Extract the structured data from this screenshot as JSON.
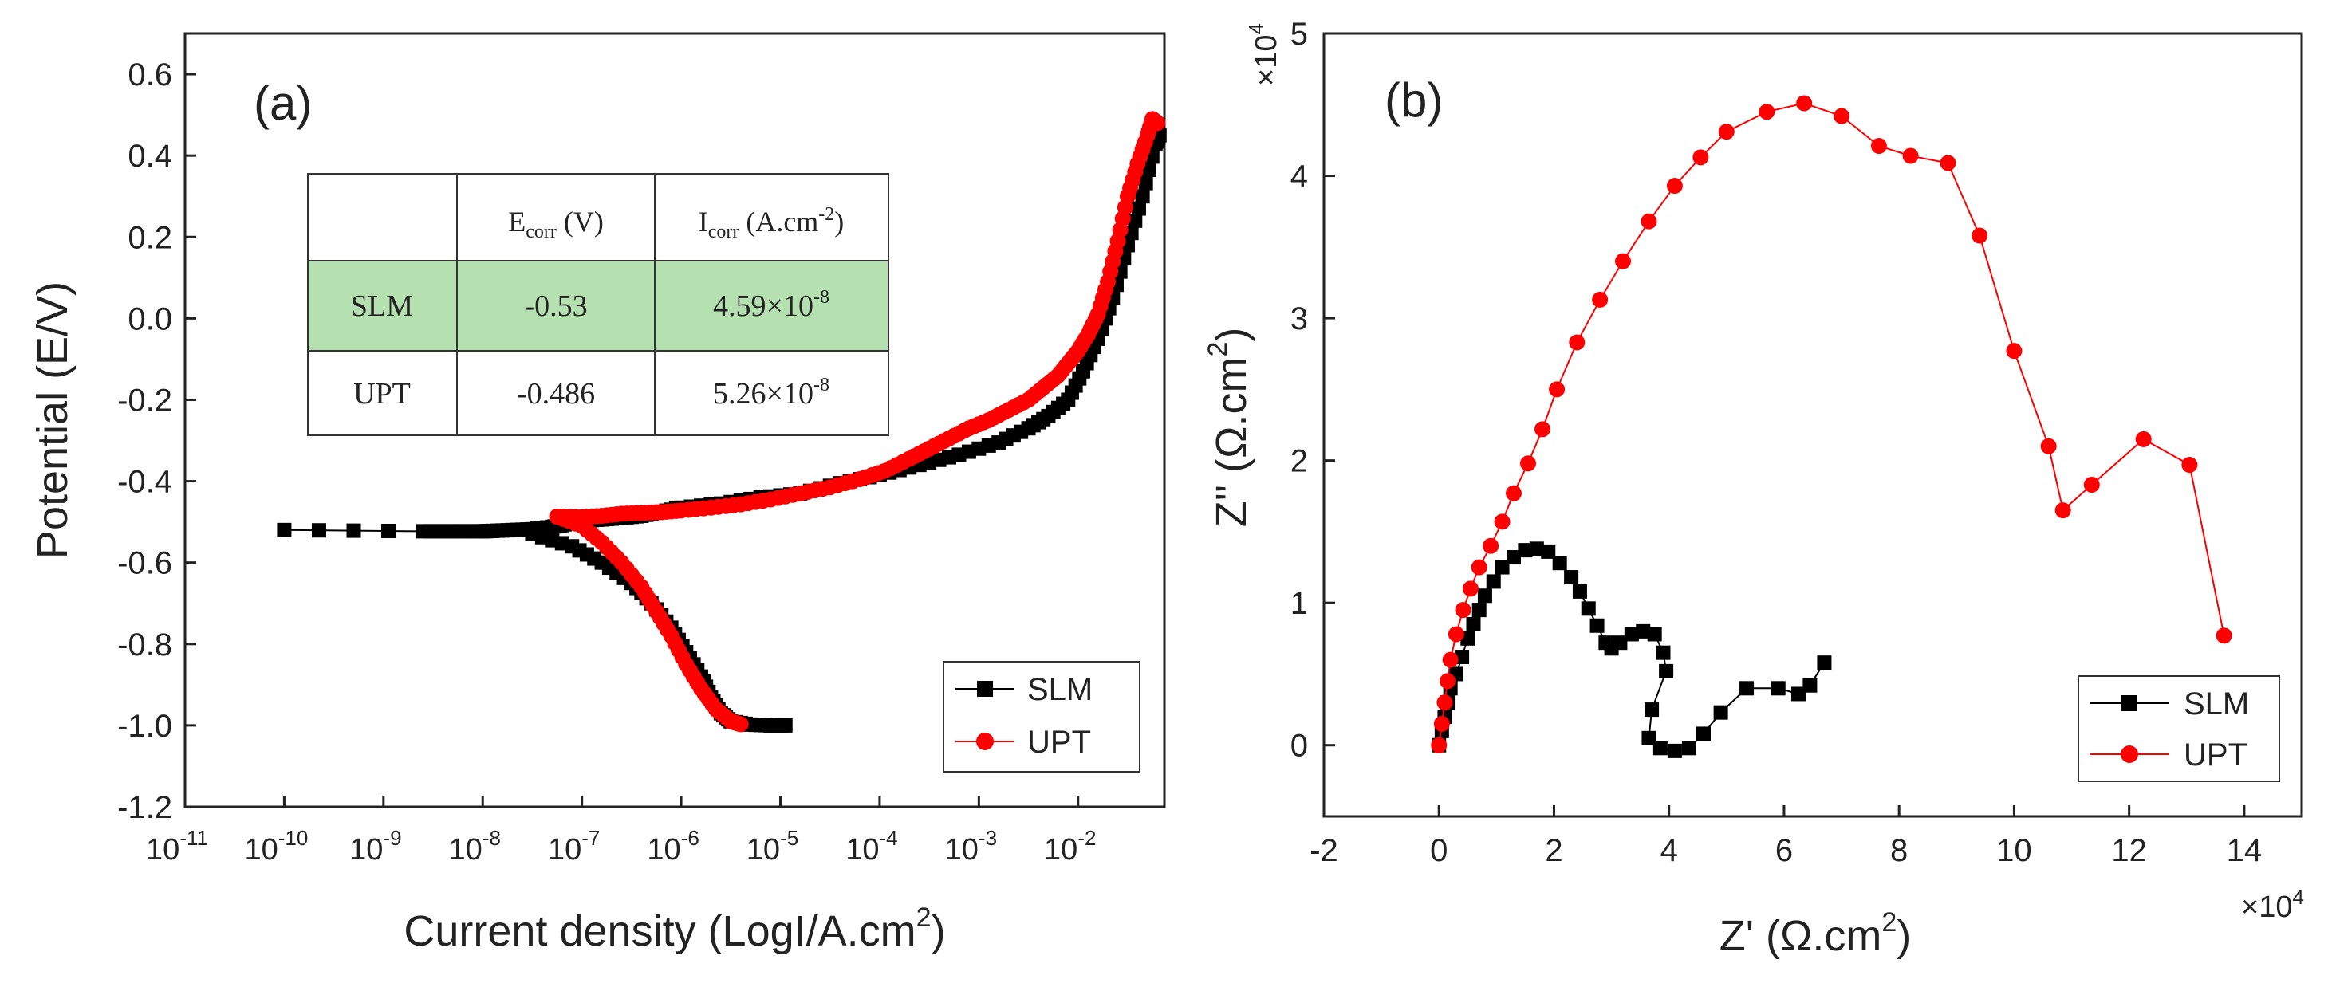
{
  "chart_data": [
    {
      "panel_label": "(a)",
      "type": "scatter",
      "xscale": "log",
      "xlabel": "Current density (LogI/A.cm",
      "xlabel_sup": "2",
      "xlabel_close": ")",
      "ylabel": "Potential (E/V)",
      "xlim_exp": [
        -11,
        -1.13
      ],
      "ylim": [
        -1.2,
        0.7
      ],
      "xtick_exponents": [
        "-11",
        "-10",
        "-9",
        "-8",
        "-7",
        "-6",
        "-5",
        "-4",
        "-3",
        "-2"
      ],
      "yticks": [
        "-1.2",
        "-1.0",
        "-0.8",
        "-0.6",
        "-0.4",
        "-0.2",
        "0.0",
        "0.2",
        "0.4",
        "0.6"
      ],
      "legend_position": "bottom-right",
      "series": [
        {
          "name": "SLM",
          "color": "#000000",
          "marker": "square",
          "points_log10x": [
            [
              -10,
              -0.52
            ],
            [
              -8.6,
              -0.523
            ],
            [
              -8.3,
              -0.523
            ],
            [
              -8.0,
              -0.523
            ],
            [
              -7.9,
              -0.522
            ],
            [
              -7.7,
              -0.52
            ],
            [
              -7.5,
              -0.518
            ],
            [
              -7.3,
              -0.512
            ],
            [
              -7.2,
              -0.508
            ],
            [
              -7.1,
              -0.5
            ],
            [
              -7.0,
              -0.497
            ],
            [
              -6.8,
              -0.494
            ],
            [
              -6.6,
              -0.49
            ],
            [
              -6.4,
              -0.485
            ],
            [
              -6.2,
              -0.475
            ],
            [
              -6.0,
              -0.465
            ],
            [
              -5.6,
              -0.455
            ],
            [
              -5.2,
              -0.44
            ],
            [
              -4.8,
              -0.43
            ],
            [
              -4.4,
              -0.405
            ],
            [
              -4.0,
              -0.385
            ],
            [
              -3.6,
              -0.36
            ],
            [
              -3.2,
              -0.335
            ],
            [
              -2.8,
              -0.305
            ],
            [
              -2.5,
              -0.27
            ],
            [
              -2.3,
              -0.24
            ],
            [
              -2.1,
              -0.2
            ],
            [
              -1.95,
              -0.13
            ],
            [
              -1.8,
              -0.05
            ],
            [
              -1.65,
              0.05
            ],
            [
              -1.5,
              0.18
            ],
            [
              -1.35,
              0.3
            ],
            [
              -1.22,
              0.43
            ],
            [
              -1.18,
              0.45
            ]
          ],
          "cathodic_log10x": [
            [
              -7.5,
              -0.53
            ],
            [
              -7.1,
              -0.56
            ],
            [
              -6.8,
              -0.6
            ],
            [
              -6.5,
              -0.65
            ],
            [
              -6.3,
              -0.7
            ],
            [
              -6.1,
              -0.76
            ],
            [
              -5.95,
              -0.82
            ],
            [
              -5.8,
              -0.88
            ],
            [
              -5.7,
              -0.93
            ],
            [
              -5.6,
              -0.97
            ],
            [
              -5.5,
              -0.99
            ],
            [
              -5.3,
              -0.998
            ],
            [
              -5.1,
              -1.0
            ],
            [
              -4.95,
              -1.0
            ]
          ]
        },
        {
          "name": "UPT",
          "color": "#ff0000",
          "marker": "circle",
          "points_log10x": [
            [
              -7.25,
              -0.487
            ],
            [
              -7.0,
              -0.488
            ],
            [
              -6.8,
              -0.485
            ],
            [
              -6.6,
              -0.48
            ],
            [
              -6.4,
              -0.478
            ],
            [
              -6.2,
              -0.476
            ],
            [
              -6.0,
              -0.472
            ],
            [
              -5.7,
              -0.465
            ],
            [
              -5.4,
              -0.457
            ],
            [
              -5.1,
              -0.445
            ],
            [
              -4.8,
              -0.43
            ],
            [
              -4.5,
              -0.415
            ],
            [
              -4.2,
              -0.395
            ],
            [
              -3.95,
              -0.375
            ],
            [
              -3.7,
              -0.345
            ],
            [
              -3.5,
              -0.32
            ],
            [
              -3.3,
              -0.295
            ],
            [
              -3.1,
              -0.27
            ],
            [
              -2.9,
              -0.25
            ],
            [
              -2.7,
              -0.225
            ],
            [
              -2.5,
              -0.2
            ],
            [
              -2.35,
              -0.17
            ],
            [
              -2.2,
              -0.14
            ],
            [
              -2.1,
              -0.11
            ],
            [
              -2.0,
              -0.08
            ],
            [
              -1.9,
              -0.04
            ],
            [
              -1.8,
              0.01
            ],
            [
              -1.7,
              0.09
            ],
            [
              -1.6,
              0.19
            ],
            [
              -1.5,
              0.3
            ],
            [
              -1.4,
              0.38
            ],
            [
              -1.3,
              0.45
            ],
            [
              -1.25,
              0.49
            ],
            [
              -1.2,
              0.48
            ]
          ],
          "cathodic_log10x": [
            [
              -7.25,
              -0.487
            ],
            [
              -7.0,
              -0.51
            ],
            [
              -6.8,
              -0.55
            ],
            [
              -6.6,
              -0.6
            ],
            [
              -6.4,
              -0.66
            ],
            [
              -6.25,
              -0.72
            ],
            [
              -6.1,
              -0.78
            ],
            [
              -5.95,
              -0.85
            ],
            [
              -5.8,
              -0.91
            ],
            [
              -5.65,
              -0.96
            ],
            [
              -5.5,
              -0.99
            ],
            [
              -5.4,
              -0.997
            ]
          ]
        }
      ],
      "table": {
        "header": [
          "",
          "E",
          "corr",
          " (V)",
          "I",
          "corr",
          " (A.cm",
          "-2",
          ")"
        ],
        "rows": [
          {
            "label": "SLM",
            "ecorr": "-0.53",
            "icorr_mantissa": "4.59",
            "icorr_times": "×",
            "icorr_base": "10",
            "icorr_exp": "-8",
            "highlight": "#b5e0b0"
          },
          {
            "label": "UPT",
            "ecorr": "-0.486",
            "icorr_mantissa": "5.26",
            "icorr_times": "×",
            "icorr_base": "10",
            "icorr_exp": "-8",
            "highlight": ""
          }
        ]
      }
    },
    {
      "panel_label": "(b)",
      "type": "line",
      "xlabel": "Z' (Ω.cm",
      "xlabel_sup": "2",
      "xlabel_close": ")",
      "ylabel": "Z'' (Ω.cm",
      "ylabel_sup": "2",
      "ylabel_close": ")",
      "x_multiplier_base": "×10",
      "x_multiplier_exp": "4",
      "y_multiplier_base": "×10",
      "y_multiplier_exp": "4",
      "xlim": [
        -2,
        15
      ],
      "ylim": [
        -0.5,
        5
      ],
      "xticks": [
        "-2",
        "0",
        "2",
        "4",
        "6",
        "8",
        "10",
        "12",
        "14"
      ],
      "yticks": [
        "0",
        "1",
        "2",
        "3",
        "4",
        "5"
      ],
      "legend_position": "bottom-right",
      "series": [
        {
          "name": "SLM",
          "color": "#000000",
          "marker": "square",
          "points": [
            [
              0.0,
              0.0
            ],
            [
              0.05,
              0.1
            ],
            [
              0.1,
              0.2
            ],
            [
              0.15,
              0.3
            ],
            [
              0.2,
              0.4
            ],
            [
              0.3,
              0.5
            ],
            [
              0.4,
              0.62
            ],
            [
              0.5,
              0.75
            ],
            [
              0.6,
              0.85
            ],
            [
              0.7,
              0.95
            ],
            [
              0.8,
              1.05
            ],
            [
              0.95,
              1.15
            ],
            [
              1.1,
              1.25
            ],
            [
              1.3,
              1.32
            ],
            [
              1.5,
              1.37
            ],
            [
              1.7,
              1.38
            ],
            [
              1.9,
              1.36
            ],
            [
              2.1,
              1.28
            ],
            [
              2.3,
              1.18
            ],
            [
              2.45,
              1.08
            ],
            [
              2.6,
              0.96
            ],
            [
              2.75,
              0.84
            ],
            [
              2.9,
              0.72
            ],
            [
              3.0,
              0.68
            ],
            [
              3.15,
              0.72
            ],
            [
              3.35,
              0.78
            ],
            [
              3.55,
              0.8
            ],
            [
              3.75,
              0.78
            ],
            [
              3.9,
              0.65
            ],
            [
              3.95,
              0.52
            ],
            [
              3.7,
              0.25
            ],
            [
              3.65,
              0.05
            ],
            [
              3.85,
              -0.02
            ],
            [
              4.1,
              -0.04
            ],
            [
              4.35,
              -0.02
            ],
            [
              4.6,
              0.08
            ],
            [
              4.9,
              0.23
            ],
            [
              5.35,
              0.4
            ],
            [
              5.9,
              0.4
            ],
            [
              6.25,
              0.36
            ],
            [
              6.45,
              0.42
            ],
            [
              6.7,
              0.58
            ]
          ]
        },
        {
          "name": "UPT",
          "color": "#ff0000",
          "marker": "circle",
          "points": [
            [
              0.0,
              0.0
            ],
            [
              0.05,
              0.15
            ],
            [
              0.1,
              0.3
            ],
            [
              0.15,
              0.45
            ],
            [
              0.2,
              0.6
            ],
            [
              0.3,
              0.78
            ],
            [
              0.42,
              0.95
            ],
            [
              0.55,
              1.1
            ],
            [
              0.7,
              1.25
            ],
            [
              0.9,
              1.4
            ],
            [
              1.1,
              1.57
            ],
            [
              1.3,
              1.77
            ],
            [
              1.55,
              1.98
            ],
            [
              1.8,
              2.22
            ],
            [
              2.05,
              2.5
            ],
            [
              2.4,
              2.83
            ],
            [
              2.8,
              3.13
            ],
            [
              3.2,
              3.4
            ],
            [
              3.65,
              3.68
            ],
            [
              4.1,
              3.93
            ],
            [
              4.55,
              4.13
            ],
            [
              5.0,
              4.31
            ],
            [
              5.7,
              4.45
            ],
            [
              6.35,
              4.51
            ],
            [
              7.0,
              4.42
            ],
            [
              7.65,
              4.21
            ],
            [
              8.2,
              4.14
            ],
            [
              8.85,
              4.09
            ],
            [
              9.4,
              3.58
            ],
            [
              10.0,
              2.77
            ],
            [
              10.6,
              2.1
            ],
            [
              10.85,
              1.65
            ],
            [
              11.35,
              1.83
            ],
            [
              12.25,
              2.15
            ],
            [
              13.05,
              1.97
            ],
            [
              13.65,
              0.77
            ]
          ]
        }
      ]
    }
  ]
}
